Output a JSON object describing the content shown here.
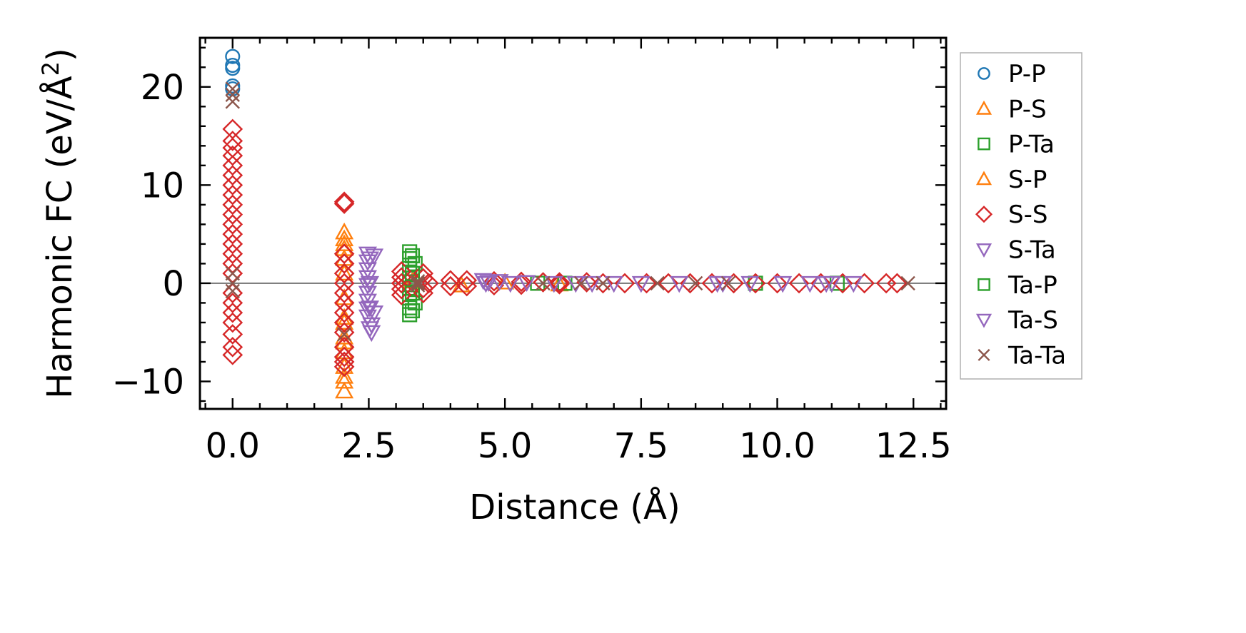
{
  "chart_data": {
    "type": "scatter",
    "xlabel": "Distance (Å)",
    "ylabel": "Harmonic FC (eV/Å²)",
    "ylabel_main": "Harmonic FC (eV/Å",
    "ylabel_sup": "2",
    "ylabel_end": ")",
    "xlim": [
      -0.6,
      13.1
    ],
    "ylim": [
      -12.8,
      25.0
    ],
    "xticks": [
      0.0,
      2.5,
      5.0,
      7.5,
      10.0,
      12.5
    ],
    "xtick_labels": [
      "0.0",
      "2.5",
      "5.0",
      "7.5",
      "10.0",
      "12.5"
    ],
    "yticks": [
      -10,
      0,
      10,
      20
    ],
    "ytick_labels": [
      "−10",
      "0",
      "10",
      "20"
    ],
    "hline_y": 0,
    "legend_position": "outside-right",
    "series": [
      {
        "name": "P-P",
        "marker": "circle",
        "color": "#1f77b4",
        "points": [
          [
            0,
            23.1
          ],
          [
            0,
            22.2
          ],
          [
            0,
            21.9
          ],
          [
            0,
            20.1
          ],
          [
            0,
            19.8
          ]
        ]
      },
      {
        "name": "P-S",
        "marker": "triangle-up",
        "color": "#ff7f0e",
        "points": [
          [
            2.05,
            5.2
          ],
          [
            2.05,
            4.5
          ],
          [
            2.05,
            3.5
          ],
          [
            2.05,
            2.5
          ],
          [
            2.05,
            1.0
          ],
          [
            2.05,
            -1.5
          ],
          [
            2.05,
            -3.5
          ],
          [
            2.05,
            -5.5
          ],
          [
            2.05,
            -7.0
          ],
          [
            2.05,
            -8.5
          ],
          [
            2.05,
            -10.0
          ],
          [
            2.05,
            -11.0
          ],
          [
            3.3,
            0.2
          ],
          [
            4.2,
            -0.2
          ],
          [
            5.0,
            0.1
          ],
          [
            6.0,
            -0.1
          ]
        ]
      },
      {
        "name": "P-Ta",
        "marker": "square",
        "color": "#2ca02c",
        "points": [
          [
            3.25,
            3.2
          ],
          [
            3.25,
            2.5
          ],
          [
            3.25,
            1.5
          ],
          [
            3.25,
            0.5
          ],
          [
            3.25,
            -0.5
          ],
          [
            3.25,
            -1.5
          ],
          [
            3.25,
            -2.5
          ],
          [
            3.25,
            -3.2
          ],
          [
            3.35,
            2.0
          ],
          [
            3.35,
            -2.0
          ],
          [
            5.6,
            0.0
          ],
          [
            6.1,
            0.0
          ],
          [
            9.6,
            0.0
          ],
          [
            11.1,
            0.0
          ]
        ]
      },
      {
        "name": "S-P",
        "marker": "triangle-up",
        "color": "#ff7f0e",
        "points": [
          [
            2.05,
            4.0
          ],
          [
            2.05,
            -4.0
          ],
          [
            2.05,
            -6.0
          ],
          [
            2.05,
            -9.5
          ]
        ]
      },
      {
        "name": "S-S",
        "marker": "diamond",
        "color": "#d62728",
        "points": [
          [
            0,
            15.7
          ],
          [
            0,
            14.5
          ],
          [
            0,
            13.8
          ],
          [
            0,
            13.0
          ],
          [
            0,
            12.0
          ],
          [
            0,
            11.0
          ],
          [
            0,
            10.0
          ],
          [
            0,
            9.0
          ],
          [
            0,
            8.0
          ],
          [
            0,
            7.0
          ],
          [
            0,
            6.0
          ],
          [
            0,
            5.0
          ],
          [
            0,
            4.0
          ],
          [
            0,
            3.0
          ],
          [
            0,
            2.0
          ],
          [
            0,
            1.0
          ],
          [
            0,
            -1.0
          ],
          [
            0,
            -2.0
          ],
          [
            0,
            -3.0
          ],
          [
            0,
            -4.0
          ],
          [
            0,
            -5.2
          ],
          [
            0,
            -6.5
          ],
          [
            0,
            -7.3
          ],
          [
            2.05,
            8.3
          ],
          [
            2.05,
            8.1
          ],
          [
            2.05,
            3.0
          ],
          [
            2.05,
            2.0
          ],
          [
            2.05,
            1.0
          ],
          [
            2.05,
            0.0
          ],
          [
            2.05,
            -1.0
          ],
          [
            2.05,
            -2.0
          ],
          [
            2.05,
            -3.0
          ],
          [
            2.05,
            -4.0
          ],
          [
            2.05,
            -5.0
          ],
          [
            2.05,
            -6.5
          ],
          [
            2.05,
            -7.5
          ],
          [
            2.05,
            -8.0
          ],
          [
            2.05,
            -8.5
          ],
          [
            3.1,
            1.2
          ],
          [
            3.1,
            0.6
          ],
          [
            3.1,
            0.0
          ],
          [
            3.1,
            -0.6
          ],
          [
            3.1,
            -1.2
          ],
          [
            3.5,
            1.0
          ],
          [
            3.5,
            0.5
          ],
          [
            3.5,
            -0.5
          ],
          [
            3.5,
            -1.0
          ],
          [
            3.6,
            0.0
          ],
          [
            4.0,
            0.3
          ],
          [
            4.0,
            -0.3
          ],
          [
            4.3,
            0.3
          ],
          [
            4.3,
            -0.3
          ],
          [
            4.8,
            0.2
          ],
          [
            4.8,
            -0.2
          ],
          [
            5.3,
            0.15
          ],
          [
            5.3,
            -0.15
          ],
          [
            5.7,
            0.1
          ],
          [
            6.0,
            0.1
          ],
          [
            6.0,
            -0.1
          ],
          [
            6.5,
            0.1
          ],
          [
            6.8,
            0.0
          ],
          [
            7.2,
            0.0
          ],
          [
            7.6,
            0.0
          ],
          [
            8.0,
            0.0
          ],
          [
            8.4,
            0.0
          ],
          [
            8.8,
            0.0
          ],
          [
            9.2,
            0.0
          ],
          [
            9.6,
            0.0
          ],
          [
            10.0,
            0.0
          ],
          [
            10.4,
            0.0
          ],
          [
            10.8,
            0.0
          ],
          [
            11.2,
            0.0
          ],
          [
            11.6,
            0.0
          ],
          [
            12.0,
            0.0
          ],
          [
            12.2,
            0.0
          ]
        ]
      },
      {
        "name": "S-Ta",
        "marker": "triangle-down",
        "color": "#9467bd",
        "points": [
          [
            2.48,
            3.0
          ],
          [
            2.48,
            2.2
          ],
          [
            2.48,
            1.4
          ],
          [
            2.48,
            0.6
          ],
          [
            2.48,
            -0.2
          ],
          [
            2.48,
            -1.0
          ],
          [
            2.48,
            -1.8
          ],
          [
            2.48,
            -2.6
          ],
          [
            2.48,
            -3.4
          ],
          [
            2.55,
            -4.2
          ],
          [
            2.55,
            -5.0
          ],
          [
            2.6,
            2.8
          ],
          [
            2.6,
            -3.0
          ],
          [
            4.6,
            0.3
          ],
          [
            4.7,
            0.1
          ],
          [
            4.9,
            0.2
          ],
          [
            5.1,
            0.0
          ],
          [
            5.4,
            0.1
          ],
          [
            5.9,
            0.0
          ],
          [
            6.3,
            0.0
          ],
          [
            7.0,
            0.0
          ],
          [
            7.5,
            0.0
          ],
          [
            8.2,
            0.0
          ],
          [
            8.9,
            0.0
          ],
          [
            9.5,
            0.0
          ],
          [
            10.1,
            0.0
          ],
          [
            10.6,
            0.0
          ],
          [
            11.0,
            0.0
          ],
          [
            11.4,
            0.0
          ]
        ]
      },
      {
        "name": "Ta-P",
        "marker": "square",
        "color": "#2ca02c",
        "points": [
          [
            3.3,
            2.8
          ],
          [
            3.3,
            -2.8
          ],
          [
            3.3,
            1.0
          ],
          [
            3.3,
            -1.0
          ]
        ]
      },
      {
        "name": "Ta-S",
        "marker": "triangle-down",
        "color": "#9467bd",
        "points": [
          [
            2.52,
            2.5
          ],
          [
            2.52,
            0.0
          ],
          [
            2.52,
            -2.5
          ],
          [
            2.52,
            -4.6
          ],
          [
            4.65,
            0.0
          ],
          [
            6.6,
            0.0
          ],
          [
            9.0,
            0.0
          ],
          [
            10.9,
            0.0
          ]
        ]
      },
      {
        "name": "Ta-Ta",
        "marker": "x",
        "color": "#8c564b",
        "points": [
          [
            0,
            19.8
          ],
          [
            0,
            19.2
          ],
          [
            0,
            18.5
          ],
          [
            0,
            1.0
          ],
          [
            0,
            0.0
          ],
          [
            0,
            -0.8
          ],
          [
            2.05,
            -5.2
          ],
          [
            3.4,
            0.2
          ],
          [
            3.4,
            0.0
          ],
          [
            3.4,
            -0.2
          ],
          [
            5.7,
            0.0
          ],
          [
            6.4,
            0.0
          ],
          [
            6.8,
            0.0
          ],
          [
            7.8,
            0.0
          ],
          [
            8.5,
            0.0
          ],
          [
            9.1,
            0.0
          ],
          [
            12.4,
            0.0
          ]
        ]
      }
    ]
  }
}
